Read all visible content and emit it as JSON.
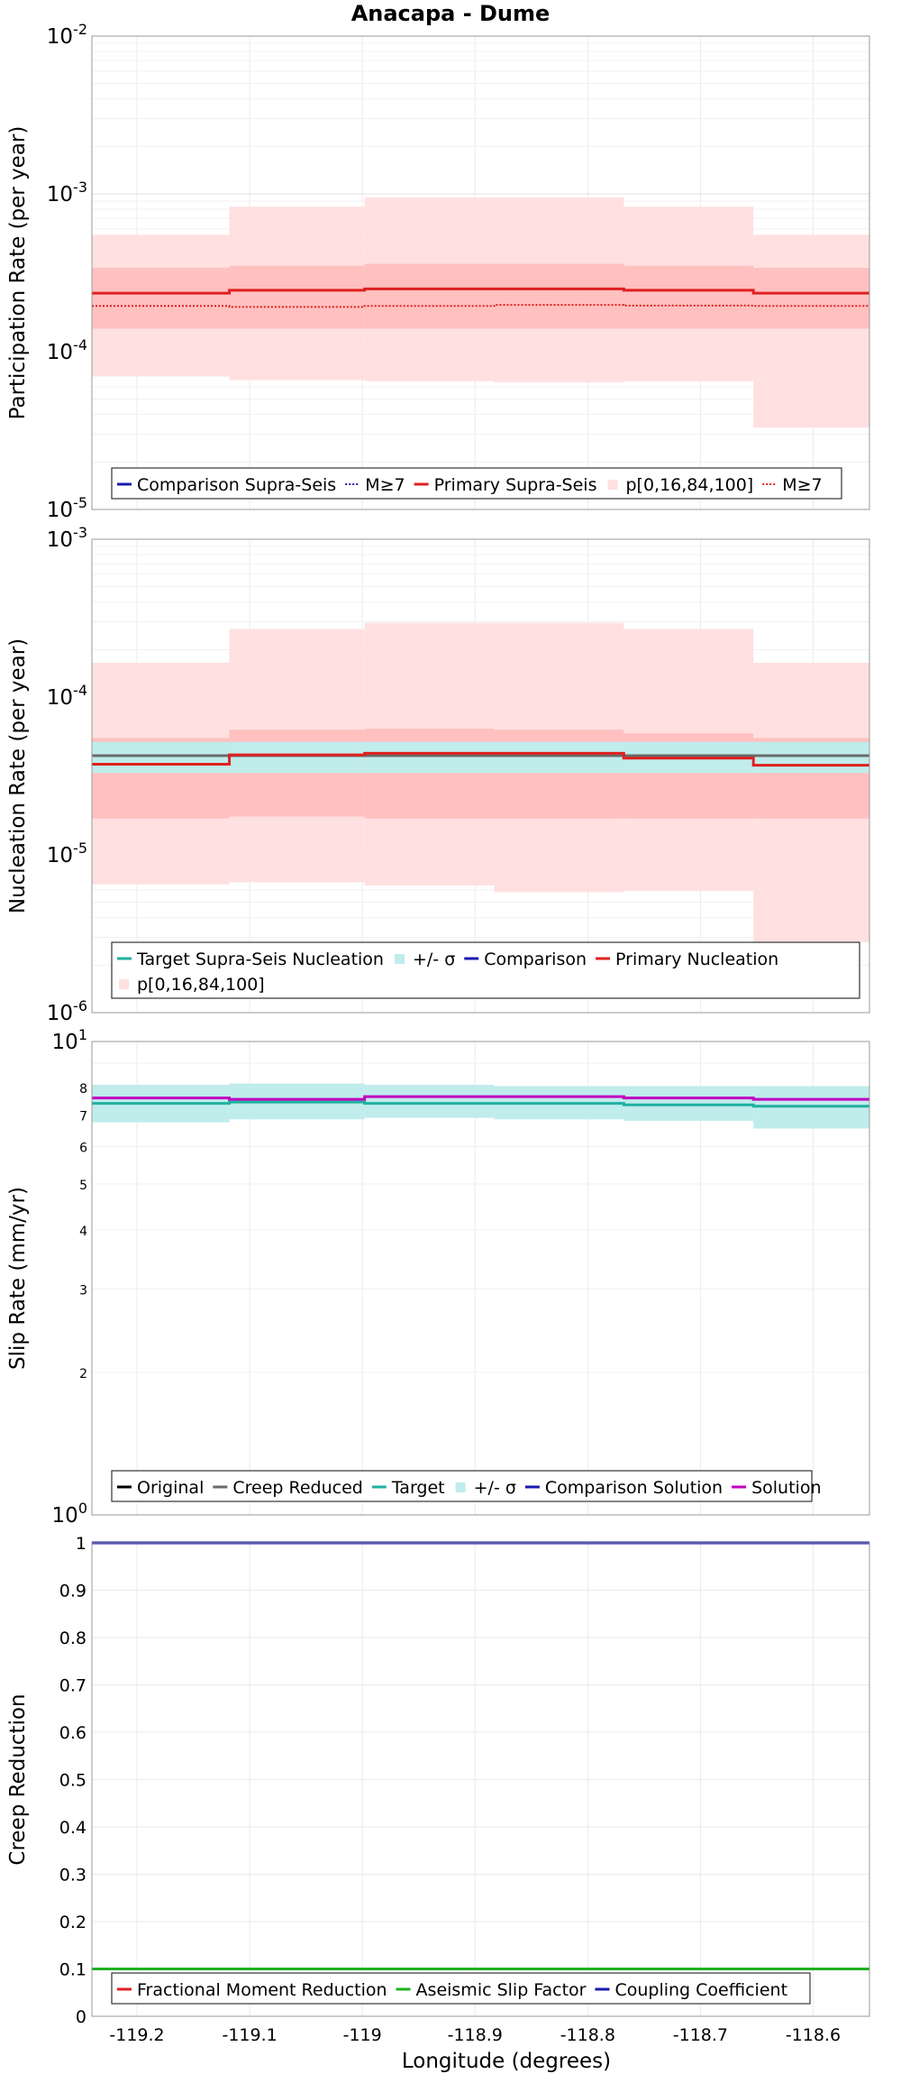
{
  "title": "Anacapa - Dume",
  "xlabel": "Longitude (degrees)",
  "x_ticks": [
    "-119.2",
    "-119.1",
    "-119",
    "-118.9",
    "-118.8",
    "-118.7",
    "-118.6"
  ],
  "colors": {
    "primary": "#e02020",
    "band_inner": "#ffc0c0",
    "band_outer": "#ffe0e0",
    "comparison": "#1a1ab0",
    "target": "#20b0a0",
    "target_band": "#c0ecec",
    "solution": "#c000c0",
    "grey": "#6a6a6a",
    "green": "#20b020"
  },
  "chart_data": [
    {
      "type": "line",
      "ylabel": "Participation Rate (per year)",
      "yscale": "log",
      "ylim": [
        1e-05,
        0.01
      ],
      "xlim": [
        -119.24,
        -118.55
      ],
      "y_ticks": [
        {
          "base": "10",
          "exp": "-5"
        },
        {
          "base": "10",
          "exp": "-4"
        },
        {
          "base": "10",
          "exp": "-3"
        },
        {
          "base": "10",
          "exp": "-2"
        }
      ],
      "sections_x": [
        -119.24,
        -119.118,
        -118.998,
        -118.883,
        -118.768,
        -118.653,
        -118.55
      ],
      "series": [
        {
          "name": "",
          "kind": "band",
          "color": "band_outer",
          "low": [
            7e-05,
            6.6e-05,
            6.5e-05,
            6.4e-05,
            6.5e-05,
            3.3e-05
          ],
          "high": [
            0.00055,
            0.00083,
            0.00095,
            0.00095,
            0.00083,
            0.00055
          ]
        },
        {
          "name": "",
          "kind": "band",
          "color": "band_inner",
          "low": [
            0.00014,
            0.00014,
            0.00014,
            0.00014,
            0.00014,
            0.00014
          ],
          "high": [
            0.00034,
            0.00035,
            0.00036,
            0.00036,
            0.00035,
            0.00034
          ]
        },
        {
          "name": "",
          "kind": "dotted",
          "color": "primary",
          "values": [
            0.000195,
            0.000192,
            0.000195,
            0.000198,
            0.000196,
            0.000195
          ]
        },
        {
          "name": "",
          "kind": "solid",
          "color": "primary",
          "values": [
            0.000235,
            0.000245,
            0.00025,
            0.00025,
            0.000245,
            0.000235
          ]
        }
      ],
      "legend": [
        {
          "label": "Comparison Supra-Seis",
          "kind": "solid",
          "color": "comparison"
        },
        {
          "label": "M≥7",
          "kind": "dotted",
          "color": "comparison"
        },
        {
          "label": "Primary Supra-Seis",
          "kind": "solid",
          "color": "primary"
        },
        {
          "label": "p[0,16,84,100]",
          "kind": "box",
          "color": "band_outer"
        },
        {
          "label": "M≥7",
          "kind": "dotted",
          "color": "primary"
        }
      ]
    },
    {
      "type": "line",
      "ylabel": "Nucleation Rate (per year)",
      "yscale": "log",
      "ylim": [
        1e-06,
        0.001
      ],
      "xlim": [
        -119.24,
        -118.55
      ],
      "y_ticks": [
        {
          "base": "10",
          "exp": "-6"
        },
        {
          "base": "10",
          "exp": "-5"
        },
        {
          "base": "10",
          "exp": "-4"
        },
        {
          "base": "10",
          "exp": "-3"
        }
      ],
      "sections_x": [
        -119.24,
        -119.118,
        -118.998,
        -118.883,
        -118.768,
        -118.653,
        -118.55
      ],
      "series": [
        {
          "name": "",
          "kind": "band",
          "color": "band_outer",
          "low": [
            6.5e-06,
            6.7e-06,
            6.4e-06,
            5.8e-06,
            5.9e-06,
            2.8e-06
          ],
          "high": [
            0.000165,
            0.00027,
            0.000295,
            0.000295,
            0.00027,
            0.000165
          ]
        },
        {
          "name": "",
          "kind": "band",
          "color": "band_inner",
          "low": [
            1.7e-05,
            1.75e-05,
            1.7e-05,
            1.7e-05,
            1.7e-05,
            1.7e-05
          ],
          "high": [
            5.5e-05,
            6.2e-05,
            6.3e-05,
            6.2e-05,
            5.9e-05,
            5.5e-05
          ]
        },
        {
          "name": "",
          "kind": "band",
          "color": "target_band",
          "low": [
            3.3e-05,
            3.3e-05,
            3.3e-05,
            3.3e-05,
            3.3e-05,
            3.3e-05
          ],
          "high": [
            5.2e-05,
            5.2e-05,
            5.2e-05,
            5.2e-05,
            5.2e-05,
            5.2e-05
          ]
        },
        {
          "name": "",
          "kind": "solid",
          "color": "grey",
          "values": [
            4.25e-05,
            4.25e-05,
            4.25e-05,
            4.25e-05,
            4.25e-05,
            4.25e-05
          ]
        },
        {
          "name": "",
          "kind": "solid",
          "color": "primary",
          "values": [
            3.75e-05,
            4.3e-05,
            4.4e-05,
            4.4e-05,
            4.1e-05,
            3.7e-05
          ]
        }
      ],
      "legend": [
        {
          "label": "Target Supra-Seis Nucleation",
          "kind": "solid",
          "color": "target"
        },
        {
          "label": "+/- σ",
          "kind": "box",
          "color": "target_band"
        },
        {
          "label": "Comparison",
          "kind": "solid",
          "color": "comparison"
        },
        {
          "label": "Primary Nucleation",
          "kind": "solid",
          "color": "primary"
        },
        {
          "label": "p[0,16,84,100]",
          "kind": "box",
          "color": "band_outer"
        }
      ]
    },
    {
      "type": "line",
      "ylabel": "Slip Rate (mm/yr)",
      "yscale": "log",
      "ylim": [
        1,
        10
      ],
      "xlim": [
        -119.24,
        -118.55
      ],
      "y_ticks": [
        {
          "base": "10",
          "exp": "0",
          "v": 1
        },
        {
          "base": "10",
          "exp": "1",
          "v": 10
        }
      ],
      "y_minor_ticks": [
        2,
        3,
        4,
        5,
        6,
        7,
        8
      ],
      "sections_x": [
        -119.24,
        -119.118,
        -118.998,
        -118.883,
        -118.768,
        -118.653,
        -118.55
      ],
      "series": [
        {
          "name": "",
          "kind": "band",
          "color": "target_band",
          "low": [
            6.75,
            6.85,
            6.9,
            6.85,
            6.8,
            6.55
          ],
          "high": [
            8.1,
            8.15,
            8.1,
            8.05,
            8.05,
            8.05
          ]
        },
        {
          "name": "",
          "kind": "solid",
          "color": "target",
          "values": [
            7.4,
            7.45,
            7.4,
            7.4,
            7.35,
            7.3
          ]
        },
        {
          "name": "",
          "kind": "solid",
          "color": "solution",
          "values": [
            7.6,
            7.55,
            7.65,
            7.65,
            7.6,
            7.55
          ]
        }
      ],
      "legend": [
        {
          "label": "Original",
          "kind": "solid",
          "color": "#000000"
        },
        {
          "label": "Creep Reduced",
          "kind": "solid",
          "color": "grey"
        },
        {
          "label": "Target",
          "kind": "solid",
          "color": "target"
        },
        {
          "label": "+/- σ",
          "kind": "box",
          "color": "target_band"
        },
        {
          "label": "Comparison Solution",
          "kind": "solid",
          "color": "comparison"
        },
        {
          "label": "Solution",
          "kind": "solid",
          "color": "solution"
        }
      ]
    },
    {
      "type": "line",
      "ylabel": "Creep Reduction",
      "yscale": "linear",
      "ylim": [
        0,
        1
      ],
      "xlim": [
        -119.24,
        -118.55
      ],
      "y_ticks": [
        "0",
        "0.1",
        "0.2",
        "0.3",
        "0.4",
        "0.5",
        "0.6",
        "0.7",
        "0.8",
        "0.9",
        "1"
      ],
      "sections_x": [
        -119.24,
        -118.55
      ],
      "series": [
        {
          "name": "",
          "kind": "solid",
          "color": "green",
          "values": [
            0.1
          ]
        },
        {
          "name": "",
          "kind": "solid",
          "color": "comparison",
          "values": [
            1.0
          ]
        }
      ],
      "legend": [
        {
          "label": "Fractional Moment Reduction",
          "kind": "solid",
          "color": "primary"
        },
        {
          "label": "Aseismic Slip Factor",
          "kind": "solid",
          "color": "green"
        },
        {
          "label": "Coupling Coefficient",
          "kind": "solid",
          "color": "comparison"
        }
      ]
    }
  ]
}
